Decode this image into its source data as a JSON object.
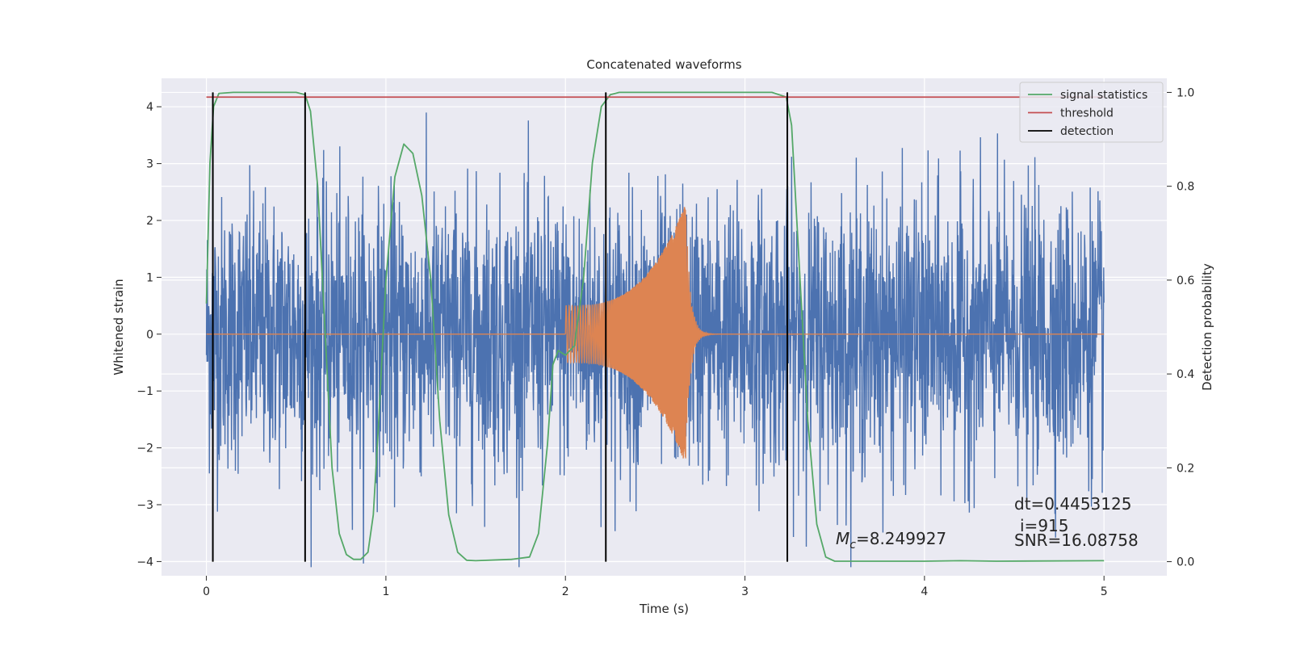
{
  "chart_data": {
    "type": "line",
    "title": "Concatenated waveforms",
    "xlabel": "Time (s)",
    "ylabel": "Whitened strain",
    "y2label": "Detection probability",
    "xlim": [
      -0.25,
      5.35
    ],
    "ylim": [
      -4.25,
      4.5
    ],
    "y2lim": [
      -0.03,
      1.03
    ],
    "xticks": [
      0,
      1,
      2,
      3,
      4,
      5
    ],
    "yticks": [
      -4,
      -3,
      -2,
      -1,
      0,
      1,
      2,
      3,
      4
    ],
    "y2ticks": [
      0.0,
      0.2,
      0.4,
      0.6,
      0.8,
      1.0
    ],
    "xtick_labels": [
      "0",
      "1",
      "2",
      "3",
      "4",
      "5"
    ],
    "ytick_labels": [
      "−4",
      "−3",
      "−2",
      "−1",
      "0",
      "1",
      "2",
      "3",
      "4"
    ],
    "y2tick_labels": [
      "0.0",
      "0.2",
      "0.4",
      "0.6",
      "0.8",
      "1.0"
    ],
    "grid": true,
    "colors": {
      "background": "#eaeaf2",
      "grid": "#ffffff",
      "strain": "#4c72b0",
      "template": "#dd8452",
      "signal_statistics": "#55a868",
      "threshold": "#c44e52",
      "detection": "#000000"
    },
    "series": [
      {
        "name": "",
        "axis": "left",
        "kind": "noise",
        "x_range": [
          0,
          5
        ],
        "typical_amplitude": 1.4,
        "max_abs": 4.1
      },
      {
        "name": "",
        "axis": "left",
        "kind": "chirp",
        "x_range": [
          2.0,
          2.67
        ],
        "start_amplitude": 0.5,
        "peak_amplitude": 2.3,
        "peak_time": 2.66,
        "ringdown_end": 3.0
      },
      {
        "name": "signal statistics",
        "axis": "right",
        "points": [
          [
            0.0,
            0.55
          ],
          [
            0.02,
            0.85
          ],
          [
            0.04,
            0.97
          ],
          [
            0.07,
            0.998
          ],
          [
            0.15,
            1.0
          ],
          [
            0.5,
            1.0
          ],
          [
            0.55,
            0.995
          ],
          [
            0.58,
            0.96
          ],
          [
            0.62,
            0.8
          ],
          [
            0.66,
            0.5
          ],
          [
            0.7,
            0.2
          ],
          [
            0.74,
            0.06
          ],
          [
            0.78,
            0.015
          ],
          [
            0.82,
            0.005
          ],
          [
            0.86,
            0.005
          ],
          [
            0.9,
            0.02
          ],
          [
            0.93,
            0.1
          ],
          [
            0.96,
            0.3
          ],
          [
            1.0,
            0.6
          ],
          [
            1.05,
            0.82
          ],
          [
            1.1,
            0.89
          ],
          [
            1.15,
            0.87
          ],
          [
            1.2,
            0.78
          ],
          [
            1.25,
            0.6
          ],
          [
            1.3,
            0.3
          ],
          [
            1.35,
            0.1
          ],
          [
            1.4,
            0.02
          ],
          [
            1.45,
            0.003
          ],
          [
            1.5,
            0.002
          ],
          [
            1.7,
            0.005
          ],
          [
            1.8,
            0.01
          ],
          [
            1.85,
            0.06
          ],
          [
            1.9,
            0.25
          ],
          [
            1.93,
            0.42
          ],
          [
            1.96,
            0.45
          ],
          [
            2.0,
            0.44
          ],
          [
            2.05,
            0.46
          ],
          [
            2.1,
            0.6
          ],
          [
            2.15,
            0.85
          ],
          [
            2.2,
            0.97
          ],
          [
            2.25,
            0.995
          ],
          [
            2.3,
            1.0
          ],
          [
            3.15,
            1.0
          ],
          [
            3.23,
            0.99
          ],
          [
            3.26,
            0.93
          ],
          [
            3.3,
            0.65
          ],
          [
            3.35,
            0.3
          ],
          [
            3.4,
            0.08
          ],
          [
            3.45,
            0.01
          ],
          [
            3.5,
            0.001
          ],
          [
            4.0,
            0.001
          ],
          [
            4.2,
            0.002
          ],
          [
            4.4,
            0.001
          ],
          [
            5.0,
            0.002
          ]
        ]
      },
      {
        "name": "threshold",
        "axis": "right",
        "value": 0.99,
        "x_range": [
          0,
          5
        ]
      },
      {
        "name": "detection",
        "axis": "right",
        "x_positions": [
          0.036,
          0.55,
          2.225,
          3.236
        ],
        "y_range": [
          0.0,
          1.0
        ]
      }
    ],
    "legend": {
      "position": "top-right",
      "entries": [
        "signal statistics",
        "threshold",
        "detection"
      ]
    },
    "annotations": {
      "mc_symbol": "M",
      "mc_subscript": "c",
      "mc_value": "=8.249927",
      "dt": "dt=0.4453125",
      "i": "i=915",
      "snr": "SNR=16.08758"
    }
  }
}
